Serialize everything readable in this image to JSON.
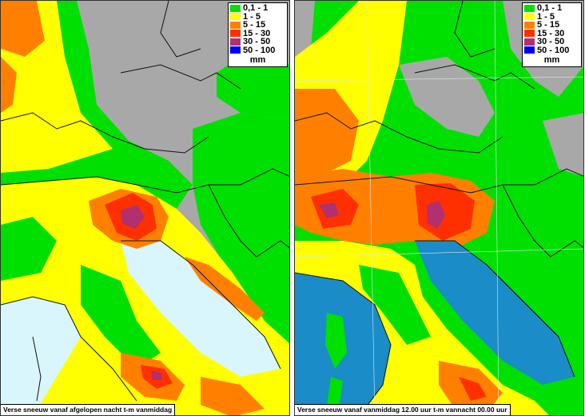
{
  "legend": {
    "items": [
      {
        "label": "0,1 - 1",
        "color": "#00e000"
      },
      {
        "label": "1 - 5",
        "color": "#ffff00"
      },
      {
        "label": "5 - 15",
        "color": "#ff8000"
      },
      {
        "label": "15 - 30",
        "color": "#ff3000"
      },
      {
        "label": "30 - 50",
        "color": "#b03070"
      },
      {
        "label": "50 - 100",
        "color": "#0000ff"
      }
    ],
    "unit": "mm"
  },
  "left_panel": {
    "caption": "Verse sneeuw vanaf afgelopen nacht t-m vanmiddag",
    "background": "#a8a8a8",
    "sea_color": "#d8f6fb"
  },
  "right_panel": {
    "caption": "Verse sneeuw vanaf vanmiddag 12.00 uur t-m vannacht 00.00 uur",
    "background": "#a8a8a8",
    "sea_color": "#1a8cc8"
  }
}
